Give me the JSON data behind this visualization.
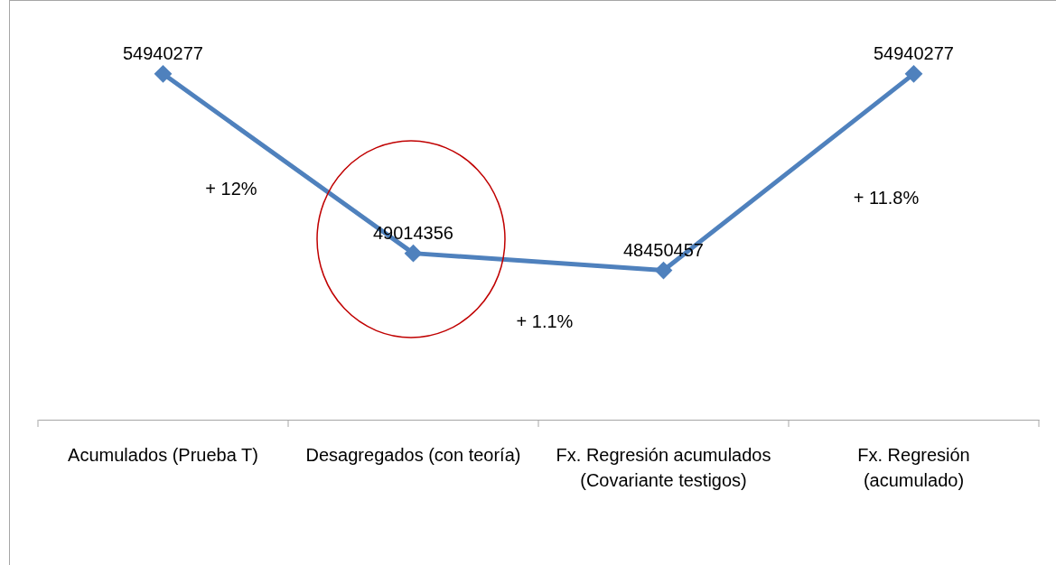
{
  "chart_data": {
    "type": "line",
    "categories": [
      "Acumulados (Prueba T)",
      "Desagregados (con teoría)",
      "Fx. Regresión acumulados (Covariante testigos)",
      "Fx. Regresión (acumulado)"
    ],
    "series": [
      {
        "color": "#4f81bd",
        "values": [
          54940277,
          49014356,
          48450457,
          54940277
        ]
      }
    ],
    "data_labels": true,
    "marker": "diamond",
    "annotations": [
      "+ 12%",
      "+ 1.1%",
      "+ 11.8%"
    ]
  }
}
